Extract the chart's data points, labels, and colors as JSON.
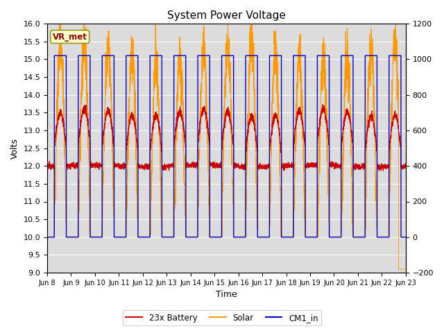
{
  "title": "System Power Voltage",
  "xlabel": "Time",
  "ylabel": "Volts",
  "ylim_left": [
    9.0,
    16.0
  ],
  "ylim_right": [
    -200,
    1200
  ],
  "yticks_left": [
    9.0,
    9.5,
    10.0,
    10.5,
    11.0,
    11.5,
    12.0,
    12.5,
    13.0,
    13.5,
    14.0,
    14.5,
    15.0,
    15.5,
    16.0
  ],
  "yticks_right": [
    -200,
    0,
    200,
    400,
    600,
    800,
    1000,
    1200
  ],
  "xtick_labels": [
    "Jun 8",
    "Jun 9",
    "Jun 10",
    "Jun 11",
    "Jun 12",
    "Jun 13",
    "Jun 14",
    "Jun 15",
    "Jun 16",
    "Jun 17",
    "Jun 18",
    "Jun 19",
    "Jun 20",
    "Jun 21",
    "Jun 22",
    "Jun 23"
  ],
  "color_battery": "#cc0000",
  "color_solar": "#ff9900",
  "color_cm1": "#0000cc",
  "label_battery": "23x Battery",
  "label_solar": "Solar",
  "label_cm1": "CM1_in",
  "vr_met_label": "VR_met",
  "background_plot": "#dcdcdc",
  "background_fig": "#ffffff",
  "n_days": 15,
  "title_fontsize": 11,
  "axis_fontsize": 9,
  "tick_fontsize": 8
}
